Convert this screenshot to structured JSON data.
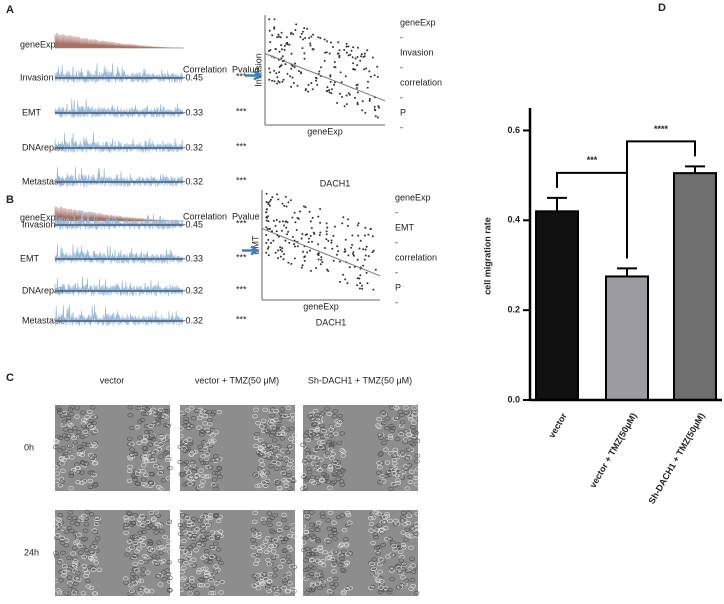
{
  "panel_labels": [
    "A",
    "B",
    "C",
    "D"
  ],
  "panel_a": {
    "gene": "geneExp",
    "pathways": [
      "Invasion",
      "EMT",
      "DNArepair",
      "Metastasis"
    ],
    "highlight": 0,
    "correlation_header": "Correlation",
    "pvalue_header": "Pvalue",
    "correlations": [
      -0.45,
      -0.33,
      -0.32,
      -0.32
    ],
    "pvalues": [
      "***",
      "***",
      "***",
      "***"
    ],
    "scatter": {
      "x_label": "geneExp",
      "y_label": "Invasion",
      "legend": [
        "geneExp",
        "-",
        "Invasion",
        "-",
        "correlation",
        "-",
        "P",
        "-"
      ],
      "caption": "DACH1"
    }
  },
  "panel_b": {
    "gene": "geneExp",
    "pathways": [
      "Invasion",
      "EMT",
      "DNArepair",
      "Metastasis"
    ],
    "highlight": 1,
    "correlation_header": "Correlation",
    "pvalue_header": "Pvalue",
    "correlations": [
      -0.45,
      -0.33,
      -0.32,
      -0.32
    ],
    "pvalues": [
      "***",
      "***",
      "***",
      "***"
    ],
    "scatter": {
      "x_label": "geneExp",
      "y_label": "EMT",
      "legend": [
        "geneExp",
        "-",
        "EMT",
        "-",
        "correlation",
        "-",
        "P",
        "-"
      ],
      "caption": "DACH1"
    }
  },
  "panel_c": {
    "columns": [
      "vector",
      "vector + TMZ(50 μM)",
      "Sh-DACH1 + TMZ(50 μM)"
    ],
    "rows": [
      "0h",
      "24h"
    ]
  },
  "chart_data": {
    "type": "bar",
    "ylabel": "cell migration rate",
    "categories": [
      "vector",
      "vector + TMZ(50μM)",
      "Sh-DACH1 + TMZ(50μM)"
    ],
    "values": [
      0.42,
      0.275,
      0.505
    ],
    "errors": [
      0.03,
      0.018,
      0.015
    ],
    "colors": [
      "#111111",
      "#9b9ba0",
      "#6e6e6e"
    ],
    "ylim": [
      0,
      0.65
    ],
    "yticks": [
      {
        "value": 0,
        "label": "0.0"
      },
      0.2,
      0.4,
      0.6
    ],
    "significance": [
      "***",
      "****"
    ]
  }
}
